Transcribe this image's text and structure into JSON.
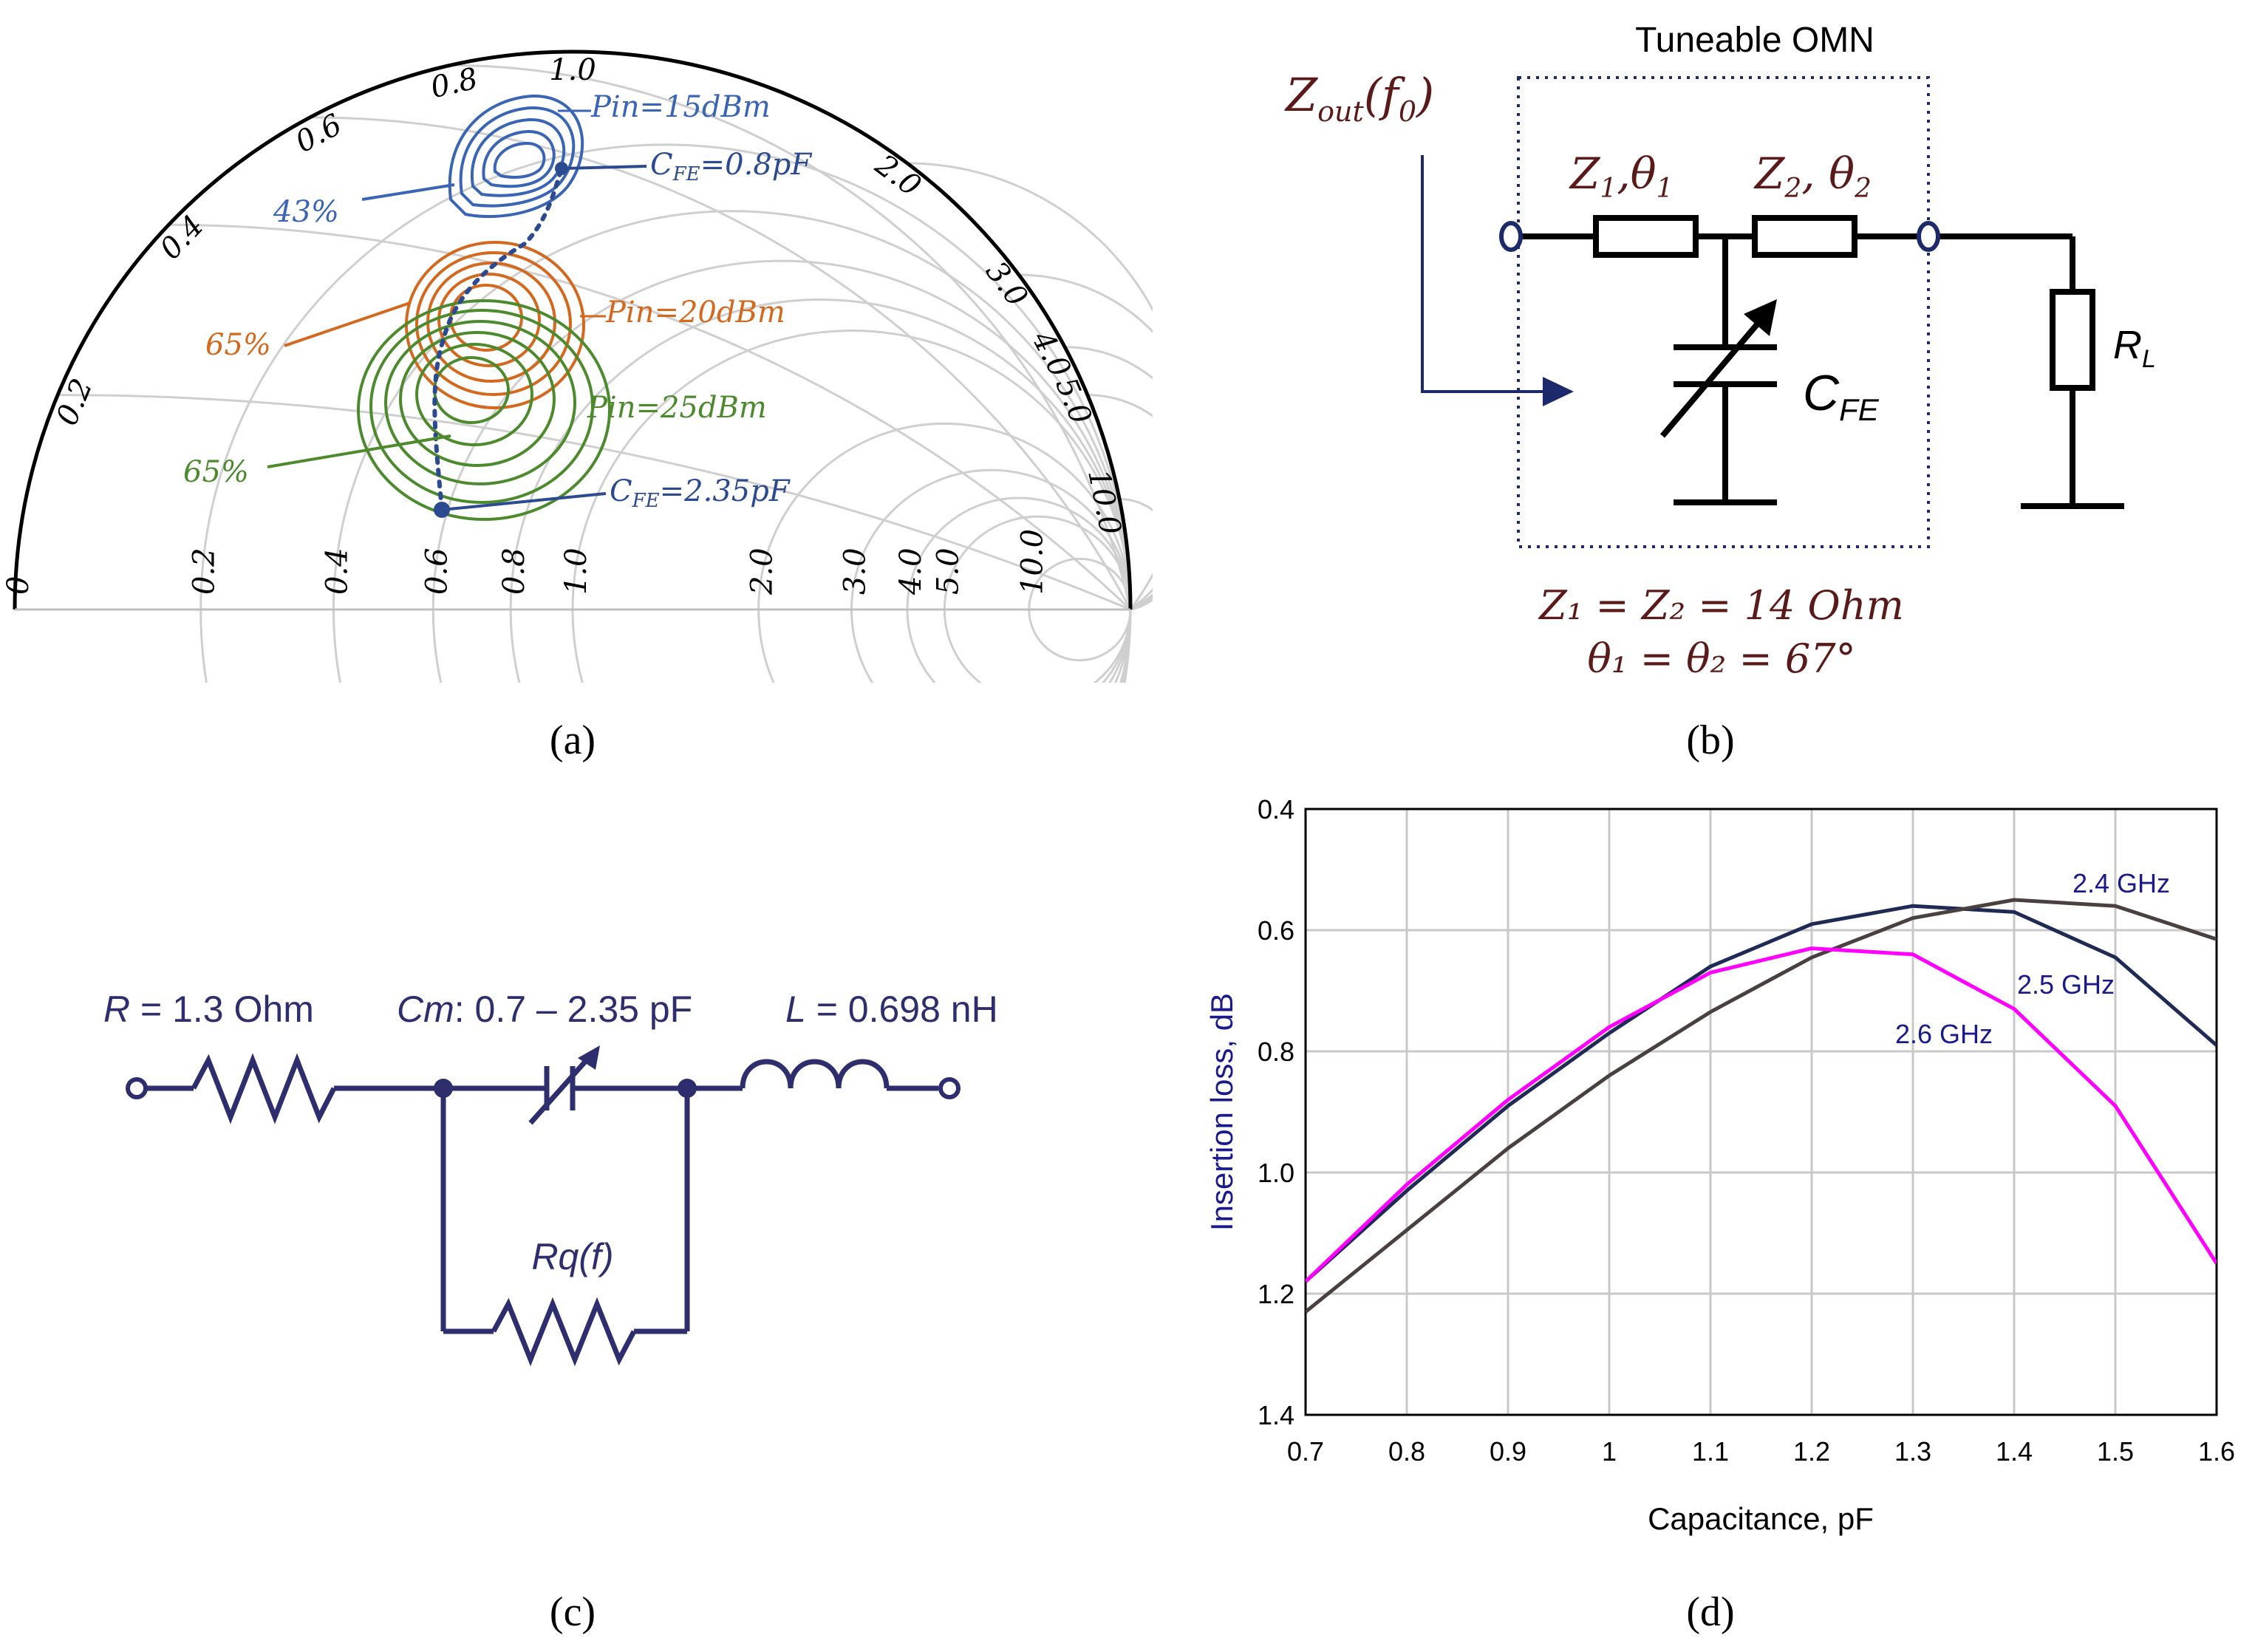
{
  "panels": {
    "a": {
      "caption": "(a)",
      "smith_real_labels": [
        "0",
        "0.2",
        "0.4",
        "0.6",
        "0.8",
        "1.0",
        "2.0",
        "3.0",
        "4.0",
        "5.0",
        "10.0"
      ],
      "smith_imag_labels": [
        "0.2",
        "0.4",
        "0.6",
        "0.8",
        "1.0",
        "2.0",
        "3.0",
        "4.0",
        "5.0",
        "10.0"
      ],
      "annotations": {
        "pin15": "Pin=15dBm",
        "pin20": "Pin=20dBm",
        "pin25": "Pin=25dBm",
        "cfe_low_sym": "C",
        "cfe_low_sub": "FE",
        "cfe_low_val": "=0.8pF",
        "cfe_high_sym": "C",
        "cfe_high_sub": "FE",
        "cfe_high_val": "=2.35pF",
        "eff_blue": "43%",
        "eff_orange": "65%",
        "eff_green": "65%"
      },
      "colors": {
        "blue": "#3a64b4",
        "orange": "#d2691e",
        "green": "#4d8a2e",
        "grid": "#cfcfcf",
        "marker": "#2b4a8f"
      }
    },
    "b": {
      "caption": "(b)",
      "title": "Tuneable OMN",
      "zout_main": "Z",
      "zout_sub": "out",
      "zout_arg": "(f",
      "zout_arg_sub": "0",
      "zout_close": ")",
      "z1_main": "Z",
      "z1_sub": "1",
      "z1_sep": ",θ",
      "z1_sub2": "1",
      "z2_main": "Z",
      "z2_sub": "2",
      "z2_sep": ", θ",
      "z2_sub2": "2",
      "cfe_main": "C",
      "cfe_sub": "FE",
      "rl_main": "R",
      "rl_sub": "L",
      "eq1": "Z₁ = Z₂ = 14 Ohm",
      "eq2": "θ₁ = θ₂ = 67°",
      "colors": {
        "text": "#5a1a1a",
        "box": "#1c2a6b",
        "wire": "#000000"
      }
    },
    "c": {
      "caption": "(c)",
      "r_label_sym": "R",
      "r_label_val": " = 1.3 Ohm",
      "cm_label_sym": "Cm",
      "cm_label_val": ": 0.7 – 2.35 pF",
      "l_label_sym": "L",
      "l_label_val": " = 0.698 nH",
      "rq_label": "Rq(f)",
      "colors": {
        "circuit": "#2e2e6e"
      }
    },
    "d": {
      "caption": "(d)",
      "colors": {
        "s24": "#1f2a55",
        "s25": "#4a4040",
        "s26": "#ff00ff",
        "label": "#1a1a8a",
        "grid": "#c8c8c8"
      }
    }
  },
  "chart_data": {
    "type": "line",
    "title": "",
    "xlabel": "Capacitance, pF",
    "ylabel": "Insertion loss, dB",
    "xlim": [
      0.7,
      1.6
    ],
    "ylim": [
      0.4,
      1.4
    ],
    "y_inverted": true,
    "grid": true,
    "x_ticks": [
      "0.7",
      "0.8",
      "0.9",
      "1",
      "1.1",
      "1.2",
      "1.3",
      "1.4",
      "1.5",
      "1.6"
    ],
    "y_ticks": [
      "0.4",
      "0.6",
      "0.8",
      "1.0",
      "1.2",
      "1.4"
    ],
    "x": [
      0.7,
      0.8,
      0.9,
      1.0,
      1.1,
      1.2,
      1.3,
      1.4,
      1.5,
      1.6
    ],
    "series": [
      {
        "name": "2.4 GHz",
        "values": [
          1.18,
          1.03,
          0.89,
          0.77,
          0.66,
          0.59,
          0.56,
          0.57,
          0.645,
          0.79
        ]
      },
      {
        "name": "2.5 GHz",
        "values": [
          1.23,
          1.095,
          0.96,
          0.84,
          0.735,
          0.645,
          0.58,
          0.55,
          0.56,
          0.615
        ]
      },
      {
        "name": "2.6 GHz",
        "values": [
          1.18,
          1.02,
          0.88,
          0.76,
          0.67,
          0.63,
          0.64,
          0.73,
          0.89,
          1.15
        ]
      }
    ]
  }
}
